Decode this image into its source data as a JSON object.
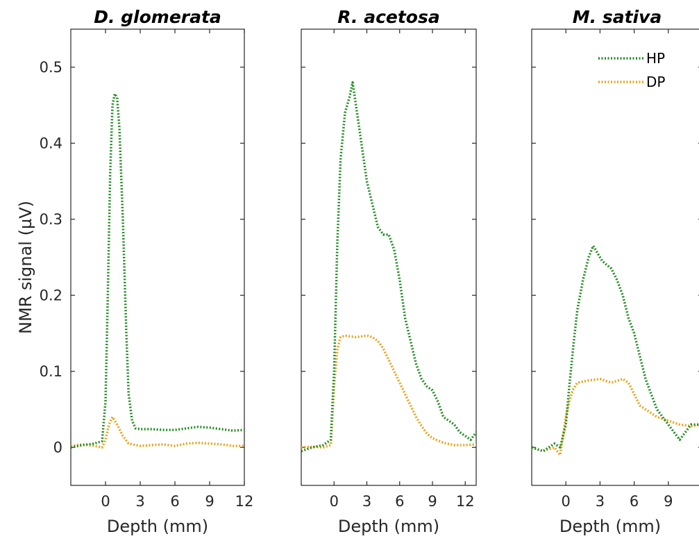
{
  "figure": {
    "ylabel": "NMR signal (µV)",
    "legend": {
      "position": "top-right",
      "entries": [
        "HP",
        "DP"
      ]
    }
  },
  "chart_data": [
    {
      "type": "line",
      "title": "D. glomerata",
      "xlabel": "Depth (mm)",
      "ylabel": "NMR signal (µV)",
      "xlim": [
        -3,
        12
      ],
      "ylim": [
        -0.05,
        0.55
      ],
      "xticks": [
        0,
        3,
        6,
        9,
        12
      ],
      "yticks": [
        0,
        0.1,
        0.2,
        0.3,
        0.4,
        0.5
      ],
      "ytick_labels": [
        "0",
        "0.1",
        "0.2",
        "0.3",
        "0.4",
        "0.5"
      ],
      "series": [
        {
          "name": "HP",
          "color": "#228B22",
          "x": [
            -3,
            -2,
            -1,
            -0.3,
            0,
            0.2,
            0.4,
            0.6,
            0.8,
            1.0,
            1.2,
            1.5,
            1.8,
            2.0,
            2.3,
            2.6,
            3,
            4,
            5,
            6,
            7,
            8,
            9,
            10,
            11,
            12
          ],
          "y": [
            0.0,
            0.003,
            0.005,
            0.008,
            0.06,
            0.2,
            0.36,
            0.45,
            0.465,
            0.46,
            0.42,
            0.3,
            0.15,
            0.07,
            0.035,
            0.025,
            0.024,
            0.024,
            0.023,
            0.023,
            0.025,
            0.027,
            0.026,
            0.024,
            0.022,
            0.023
          ]
        },
        {
          "name": "DP",
          "color": "#E8A317",
          "x": [
            -3,
            -2,
            -1,
            -0.3,
            0,
            0.3,
            0.6,
            1.0,
            1.5,
            2.0,
            3,
            4,
            5,
            6,
            7,
            8,
            9,
            10,
            11,
            12
          ],
          "y": [
            0.002,
            0.004,
            0.002,
            0.0,
            0.01,
            0.03,
            0.04,
            0.03,
            0.015,
            0.005,
            0.002,
            0.003,
            0.004,
            0.002,
            0.005,
            0.006,
            0.005,
            0.004,
            0.002,
            0.002
          ]
        }
      ]
    },
    {
      "type": "line",
      "title": "R. acetosa",
      "xlabel": "Depth (mm)",
      "xlim": [
        -3,
        13
      ],
      "ylim": [
        -0.05,
        0.55
      ],
      "xticks": [
        0,
        3,
        6,
        9,
        12
      ],
      "series": [
        {
          "name": "HP",
          "color": "#228B22",
          "x": [
            -3,
            -2,
            -1,
            -0.3,
            0,
            0.3,
            0.6,
            1.0,
            1.4,
            1.7,
            2.0,
            2.3,
            2.7,
            3.0,
            3.5,
            4.0,
            4.5,
            5.0,
            5.5,
            6.0,
            6.5,
            7.0,
            7.5,
            8.0,
            8.5,
            9.0,
            9.5,
            10.0,
            10.5,
            11.0,
            11.5,
            12.0,
            12.5,
            13.0
          ],
          "y": [
            -0.005,
            0.0,
            0.003,
            0.01,
            0.1,
            0.27,
            0.38,
            0.44,
            0.46,
            0.48,
            0.45,
            0.42,
            0.38,
            0.35,
            0.32,
            0.29,
            0.28,
            0.28,
            0.26,
            0.22,
            0.17,
            0.14,
            0.11,
            0.09,
            0.08,
            0.075,
            0.06,
            0.04,
            0.035,
            0.03,
            0.02,
            0.015,
            0.01,
            0.02
          ]
        },
        {
          "name": "DP",
          "color": "#E8A317",
          "x": [
            -3,
            -2,
            -1,
            -0.3,
            0,
            0.3,
            0.6,
            1.0,
            2.0,
            3.0,
            3.5,
            4.0,
            4.5,
            5.0,
            5.5,
            6.0,
            6.5,
            7.0,
            7.5,
            8.0,
            8.5,
            9.0,
            10.0,
            11.0,
            12.0,
            13.0
          ],
          "y": [
            0.0,
            0.001,
            0.0,
            0.003,
            0.08,
            0.13,
            0.145,
            0.147,
            0.145,
            0.147,
            0.145,
            0.14,
            0.13,
            0.115,
            0.1,
            0.085,
            0.07,
            0.055,
            0.04,
            0.028,
            0.018,
            0.012,
            0.006,
            0.003,
            0.003,
            0.004
          ]
        }
      ]
    },
    {
      "type": "line",
      "title": "M. sativa",
      "xlabel": "Depth (mm)",
      "xlim": [
        -3,
        12
      ],
      "ylim": [
        -0.05,
        0.55
      ],
      "xticks": [
        0,
        3,
        6,
        9
      ],
      "series": [
        {
          "name": "HP",
          "color": "#228B22",
          "x": [
            -3,
            -2,
            -1,
            -0.5,
            0,
            0.3,
            0.7,
            1.0,
            1.5,
            2.0,
            2.4,
            2.8,
            3.2,
            3.6,
            4.0,
            4.5,
            5.0,
            5.5,
            6.0,
            6.5,
            7.0,
            7.5,
            8.0,
            8.5,
            9.0,
            9.5,
            10.0,
            10.5,
            11.0,
            12.0
          ],
          "y": [
            0.0,
            -0.005,
            0.005,
            0.0,
            0.03,
            0.08,
            0.14,
            0.18,
            0.22,
            0.25,
            0.265,
            0.255,
            0.245,
            0.24,
            0.235,
            0.22,
            0.2,
            0.17,
            0.15,
            0.12,
            0.09,
            0.07,
            0.05,
            0.04,
            0.03,
            0.02,
            0.01,
            0.02,
            0.03,
            0.03
          ]
        },
        {
          "name": "DP",
          "color": "#E8A317",
          "x": [
            -3,
            -2,
            -1,
            -0.5,
            0,
            0.3,
            0.6,
            1.0,
            2.0,
            3.0,
            4.0,
            5.0,
            5.5,
            6.0,
            6.5,
            7.0,
            7.5,
            8.0,
            9.0,
            10.0,
            11.0,
            12.0
          ],
          "y": [
            0.0,
            -0.005,
            0.0,
            -0.01,
            0.04,
            0.06,
            0.075,
            0.085,
            0.088,
            0.09,
            0.085,
            0.09,
            0.085,
            0.07,
            0.055,
            0.05,
            0.045,
            0.04,
            0.035,
            0.03,
            0.028,
            0.03
          ]
        }
      ]
    }
  ]
}
